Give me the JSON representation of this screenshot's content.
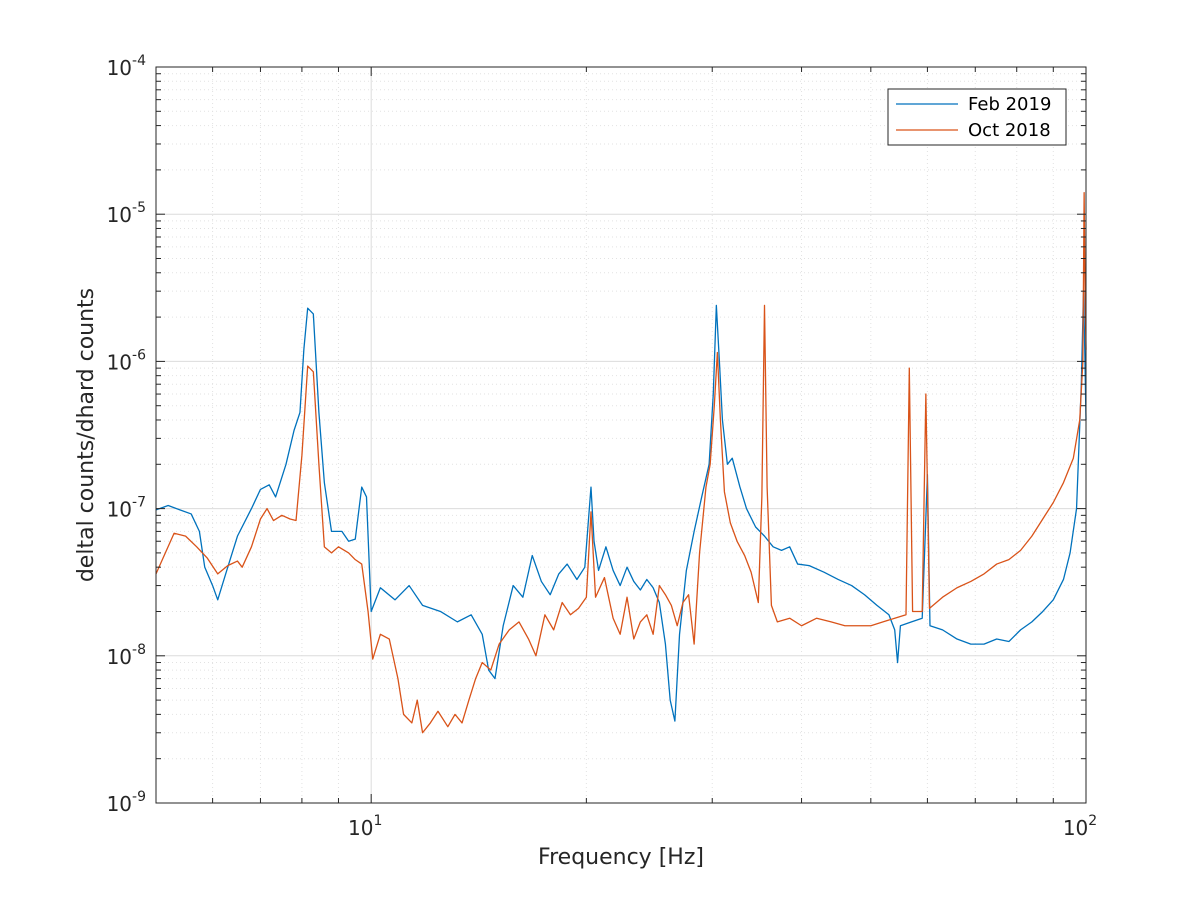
{
  "chart_data": {
    "type": "line",
    "title": "",
    "xlabel": "Frequency [Hz]",
    "ylabel": "deltal counts/dhard counts",
    "x_scale": "log",
    "y_scale": "log",
    "xlim": [
      5,
      100
    ],
    "ylim": [
      1e-09,
      0.0001
    ],
    "grid": "major and minor",
    "legend_position": "top-right",
    "x_ticks": [
      {
        "value": 10,
        "base": "10",
        "exp": "1"
      },
      {
        "value": 100,
        "base": "10",
        "exp": "2"
      }
    ],
    "y_ticks": [
      {
        "value": 1e-09,
        "base": "10",
        "exp": "-9"
      },
      {
        "value": 1e-08,
        "base": "10",
        "exp": "-8"
      },
      {
        "value": 1e-07,
        "base": "10",
        "exp": "-7"
      },
      {
        "value": 1e-06,
        "base": "10",
        "exp": "-6"
      },
      {
        "value": 1e-05,
        "base": "10",
        "exp": "-5"
      },
      {
        "value": 0.0001,
        "base": "10",
        "exp": "-4"
      }
    ],
    "series": [
      {
        "name": "Feb 2019",
        "color": "#0072BD",
        "points": [
          [
            5.0,
            9.8e-08
          ],
          [
            5.2,
            1.05e-07
          ],
          [
            5.4,
            9.8e-08
          ],
          [
            5.6,
            9.2e-08
          ],
          [
            5.75,
            7e-08
          ],
          [
            5.85,
            4e-08
          ],
          [
            6.0,
            3e-08
          ],
          [
            6.1,
            2.4e-08
          ],
          [
            6.3,
            4e-08
          ],
          [
            6.5,
            6.5e-08
          ],
          [
            6.8,
            1e-07
          ],
          [
            7.0,
            1.35e-07
          ],
          [
            7.2,
            1.45e-07
          ],
          [
            7.35,
            1.2e-07
          ],
          [
            7.6,
            2e-07
          ],
          [
            7.8,
            3.4e-07
          ],
          [
            7.95,
            4.5e-07
          ],
          [
            8.05,
            1.2e-06
          ],
          [
            8.15,
            2.3e-06
          ],
          [
            8.3,
            2.1e-06
          ],
          [
            8.45,
            4.5e-07
          ],
          [
            8.6,
            1.5e-07
          ],
          [
            8.8,
            7e-08
          ],
          [
            9.1,
            7e-08
          ],
          [
            9.3,
            6e-08
          ],
          [
            9.5,
            6.2e-08
          ],
          [
            9.7,
            1.4e-07
          ],
          [
            9.85,
            1.2e-07
          ],
          [
            10.0,
            2e-08
          ],
          [
            10.3,
            2.9e-08
          ],
          [
            10.8,
            2.4e-08
          ],
          [
            11.3,
            3e-08
          ],
          [
            11.8,
            2.2e-08
          ],
          [
            12.5,
            2e-08
          ],
          [
            13.2,
            1.7e-08
          ],
          [
            13.8,
            1.9e-08
          ],
          [
            14.3,
            1.4e-08
          ],
          [
            14.6,
            8e-09
          ],
          [
            14.9,
            7e-09
          ],
          [
            15.3,
            1.6e-08
          ],
          [
            15.8,
            3e-08
          ],
          [
            16.3,
            2.5e-08
          ],
          [
            16.8,
            4.8e-08
          ],
          [
            17.3,
            3.2e-08
          ],
          [
            17.8,
            2.6e-08
          ],
          [
            18.3,
            3.6e-08
          ],
          [
            18.8,
            4.2e-08
          ],
          [
            19.4,
            3.3e-08
          ],
          [
            19.9,
            4e-08
          ],
          [
            20.3,
            1.4e-07
          ],
          [
            20.5,
            6e-08
          ],
          [
            20.8,
            3.8e-08
          ],
          [
            21.3,
            5.5e-08
          ],
          [
            21.8,
            3.8e-08
          ],
          [
            22.3,
            3e-08
          ],
          [
            22.8,
            4e-08
          ],
          [
            23.3,
            3.2e-08
          ],
          [
            23.8,
            2.8e-08
          ],
          [
            24.3,
            3.3e-08
          ],
          [
            24.8,
            2.9e-08
          ],
          [
            25.3,
            2.3e-08
          ],
          [
            25.8,
            1.2e-08
          ],
          [
            26.2,
            5e-09
          ],
          [
            26.6,
            3.6e-09
          ],
          [
            27.0,
            1.4e-08
          ],
          [
            27.6,
            3.8e-08
          ],
          [
            28.3,
            7e-08
          ],
          [
            29.0,
            1.2e-07
          ],
          [
            29.7,
            2e-07
          ],
          [
            30.1,
            6e-07
          ],
          [
            30.4,
            2.4e-06
          ],
          [
            30.7,
            1e-06
          ],
          [
            31.0,
            4e-07
          ],
          [
            31.5,
            2e-07
          ],
          [
            32.0,
            2.2e-07
          ],
          [
            32.8,
            1.4e-07
          ],
          [
            33.5,
            1e-07
          ],
          [
            34.5,
            7.5e-08
          ],
          [
            35.5,
            6.5e-08
          ],
          [
            36.5,
            5.5e-08
          ],
          [
            37.5,
            5.2e-08
          ],
          [
            38.5,
            5.5e-08
          ],
          [
            39.5,
            4.2e-08
          ],
          [
            41.0,
            4.1e-08
          ],
          [
            43.0,
            3.7e-08
          ],
          [
            45.0,
            3.3e-08
          ],
          [
            47.0,
            3e-08
          ],
          [
            49.0,
            2.6e-08
          ],
          [
            51.0,
            2.2e-08
          ],
          [
            53.0,
            1.9e-08
          ],
          [
            54.0,
            1.5e-08
          ],
          [
            54.5,
            9e-09
          ],
          [
            55.0,
            1.6e-08
          ],
          [
            57.0,
            1.7e-08
          ],
          [
            59.0,
            1.8e-08
          ],
          [
            60.0,
            1.7e-07
          ],
          [
            60.5,
            1.6e-08
          ],
          [
            63.0,
            1.5e-08
          ],
          [
            66.0,
            1.3e-08
          ],
          [
            69.0,
            1.2e-08
          ],
          [
            72.0,
            1.2e-08
          ],
          [
            75.0,
            1.3e-08
          ],
          [
            78.0,
            1.25e-08
          ],
          [
            81.0,
            1.5e-08
          ],
          [
            84.0,
            1.7e-08
          ],
          [
            87.0,
            2e-08
          ],
          [
            90.0,
            2.4e-08
          ],
          [
            93.0,
            3.3e-08
          ],
          [
            95.0,
            5e-08
          ],
          [
            97.0,
            1e-07
          ],
          [
            98.5,
            7e-07
          ],
          [
            99.2,
            3e-06
          ],
          [
            99.6,
            1.2e-06
          ],
          [
            100.0,
            4e-07
          ]
        ]
      },
      {
        "name": "Oct 2018",
        "color": "#D95319",
        "points": [
          [
            5.0,
            3.6e-08
          ],
          [
            5.3,
            6.8e-08
          ],
          [
            5.5,
            6.5e-08
          ],
          [
            5.7,
            5.5e-08
          ],
          [
            5.9,
            4.6e-08
          ],
          [
            6.1,
            3.6e-08
          ],
          [
            6.3,
            4.1e-08
          ],
          [
            6.5,
            4.4e-08
          ],
          [
            6.6,
            4e-08
          ],
          [
            6.8,
            5.5e-08
          ],
          [
            7.0,
            8.5e-08
          ],
          [
            7.15,
            1e-07
          ],
          [
            7.3,
            8.3e-08
          ],
          [
            7.5,
            9e-08
          ],
          [
            7.7,
            8.5e-08
          ],
          [
            7.85,
            8.3e-08
          ],
          [
            8.0,
            2.3e-07
          ],
          [
            8.15,
            9.3e-07
          ],
          [
            8.3,
            8.5e-07
          ],
          [
            8.45,
            2e-07
          ],
          [
            8.6,
            5.5e-08
          ],
          [
            8.8,
            5e-08
          ],
          [
            9.0,
            5.5e-08
          ],
          [
            9.3,
            5e-08
          ],
          [
            9.5,
            4.5e-08
          ],
          [
            9.7,
            4.2e-08
          ],
          [
            9.9,
            2e-08
          ],
          [
            10.05,
            9.5e-09
          ],
          [
            10.3,
            1.4e-08
          ],
          [
            10.6,
            1.3e-08
          ],
          [
            10.9,
            7e-09
          ],
          [
            11.1,
            4e-09
          ],
          [
            11.4,
            3.5e-09
          ],
          [
            11.6,
            5e-09
          ],
          [
            11.8,
            3e-09
          ],
          [
            12.1,
            3.5e-09
          ],
          [
            12.4,
            4.2e-09
          ],
          [
            12.8,
            3.3e-09
          ],
          [
            13.1,
            4e-09
          ],
          [
            13.4,
            3.5e-09
          ],
          [
            13.7,
            5e-09
          ],
          [
            14.0,
            7e-09
          ],
          [
            14.3,
            9e-09
          ],
          [
            14.7,
            8e-09
          ],
          [
            15.1,
            1.2e-08
          ],
          [
            15.6,
            1.5e-08
          ],
          [
            16.1,
            1.7e-08
          ],
          [
            16.6,
            1.3e-08
          ],
          [
            17.0,
            1e-08
          ],
          [
            17.5,
            1.9e-08
          ],
          [
            18.0,
            1.5e-08
          ],
          [
            18.5,
            2.3e-08
          ],
          [
            19.0,
            1.9e-08
          ],
          [
            19.5,
            2.1e-08
          ],
          [
            20.0,
            2.5e-08
          ],
          [
            20.3,
            9.5e-08
          ],
          [
            20.6,
            2.5e-08
          ],
          [
            21.2,
            3.4e-08
          ],
          [
            21.8,
            1.8e-08
          ],
          [
            22.3,
            1.4e-08
          ],
          [
            22.8,
            2.5e-08
          ],
          [
            23.3,
            1.3e-08
          ],
          [
            23.8,
            1.7e-08
          ],
          [
            24.3,
            1.9e-08
          ],
          [
            24.8,
            1.4e-08
          ],
          [
            25.3,
            3e-08
          ],
          [
            25.8,
            2.6e-08
          ],
          [
            26.3,
            2.2e-08
          ],
          [
            26.8,
            1.6e-08
          ],
          [
            27.3,
            2.3e-08
          ],
          [
            27.8,
            2.6e-08
          ],
          [
            28.3,
            1.2e-08
          ],
          [
            28.8,
            5e-08
          ],
          [
            29.4,
            1.4e-07
          ],
          [
            29.8,
            2e-07
          ],
          [
            30.2,
            5e-07
          ],
          [
            30.5,
            1.15e-06
          ],
          [
            30.8,
            4e-07
          ],
          [
            31.2,
            1.3e-07
          ],
          [
            31.8,
            8e-08
          ],
          [
            32.5,
            6e-08
          ],
          [
            33.3,
            4.8e-08
          ],
          [
            34.0,
            3.7e-08
          ],
          [
            34.8,
            2.3e-08
          ],
          [
            35.2,
            1.2e-07
          ],
          [
            35.5,
            2.4e-06
          ],
          [
            35.8,
            1.4e-07
          ],
          [
            36.3,
            2.2e-08
          ],
          [
            37.0,
            1.7e-08
          ],
          [
            38.5,
            1.8e-08
          ],
          [
            40.0,
            1.6e-08
          ],
          [
            42.0,
            1.8e-08
          ],
          [
            44.0,
            1.7e-08
          ],
          [
            46.0,
            1.6e-08
          ],
          [
            48.0,
            1.6e-08
          ],
          [
            50.0,
            1.6e-08
          ],
          [
            52.0,
            1.7e-08
          ],
          [
            54.0,
            1.8e-08
          ],
          [
            56.0,
            1.9e-08
          ],
          [
            56.6,
            9e-07
          ],
          [
            57.2,
            2e-08
          ],
          [
            59.0,
            2e-08
          ],
          [
            59.7,
            6e-07
          ],
          [
            60.4,
            2.1e-08
          ],
          [
            63.0,
            2.5e-08
          ],
          [
            66.0,
            2.9e-08
          ],
          [
            69.0,
            3.2e-08
          ],
          [
            72.0,
            3.6e-08
          ],
          [
            75.0,
            4.2e-08
          ],
          [
            78.0,
            4.5e-08
          ],
          [
            81.0,
            5.2e-08
          ],
          [
            84.0,
            6.5e-08
          ],
          [
            87.0,
            8.5e-08
          ],
          [
            90.0,
            1.1e-07
          ],
          [
            93.0,
            1.5e-07
          ],
          [
            96.0,
            2.2e-07
          ],
          [
            98.0,
            4e-07
          ],
          [
            99.0,
            1e-06
          ],
          [
            99.4,
            1.4e-05
          ],
          [
            99.7,
            3e-06
          ],
          [
            100.0,
            1.2e-06
          ]
        ]
      }
    ]
  }
}
